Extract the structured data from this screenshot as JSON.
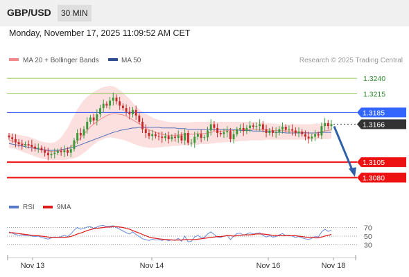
{
  "header": {
    "pair": "GBP/USD",
    "timeframe": "30 MIN"
  },
  "datetime": "Monday, November 17, 2025 11:09:52 AM CET",
  "legend": {
    "ma20": "MA 20 + Bollinger Bands",
    "ma50": "MA 50",
    "rsi": "RSI",
    "rsi_ma": "9MA"
  },
  "credit": "Research © 2025 Trading Central",
  "colors": {
    "ma20": "#f08a8a",
    "band": "#fbdada",
    "ma50": "#5470b8",
    "up": "#3a9a3a",
    "down": "#c52a2a",
    "resistance": "#8cc84a",
    "pivot_line": "#3355ee",
    "pivot_label": "#3366ff",
    "support": "#ee1111",
    "current": "#333333",
    "arrow": "#2e5fa8",
    "rsi": "#6a8adb",
    "rsi_ma": "#dd1a1a"
  },
  "chart_data": {
    "type": "candlestick",
    "x_tick_labels": [
      "Nov 13",
      "Nov 14",
      "Nov 16",
      "Nov 18"
    ],
    "price_range": [
      1.3056,
      1.3258
    ],
    "levels": [
      {
        "label": "1.3240",
        "value": 1.324,
        "kind": "resistance"
      },
      {
        "label": "1.3215",
        "value": 1.3215,
        "kind": "resistance"
      },
      {
        "label": "1.3185",
        "value": 1.3185,
        "kind": "pivot"
      },
      {
        "label": "1.3105",
        "value": 1.3105,
        "kind": "support"
      },
      {
        "label": "1.3080",
        "value": 1.308,
        "kind": "support"
      }
    ],
    "current_price": {
      "label": "1.3166",
      "value": 1.3166
    },
    "forecast_arrow": {
      "from": 1.3166,
      "to": 1.308
    },
    "close": [
      1.3145,
      1.3142,
      1.3137,
      1.3134,
      1.3132,
      1.3134,
      1.3133,
      1.313,
      1.3127,
      1.3128,
      1.3124,
      1.312,
      1.3116,
      1.3118,
      1.312,
      1.3123,
      1.3121,
      1.3124,
      1.312,
      1.3126,
      1.314,
      1.3152,
      1.3148,
      1.3158,
      1.317,
      1.3177,
      1.3172,
      1.3182,
      1.3192,
      1.3199,
      1.3196,
      1.3204,
      1.3209,
      1.3203,
      1.3196,
      1.3192,
      1.3186,
      1.3182,
      1.3189,
      1.318,
      1.317,
      1.3158,
      1.3152,
      1.3147,
      1.315,
      1.3147,
      1.3146,
      1.3144,
      1.3147,
      1.3142,
      1.3146,
      1.3144,
      1.3148,
      1.314,
      1.3152,
      1.3136,
      1.3136,
      1.3146,
      1.315,
      1.3144,
      1.3145,
      1.3156,
      1.3166,
      1.316,
      1.3152,
      1.315,
      1.3153,
      1.3155,
      1.3142,
      1.315,
      1.3158,
      1.316,
      1.3155,
      1.316,
      1.3164,
      1.3162,
      1.3163,
      1.3166,
      1.3158,
      1.3152,
      1.3156,
      1.3152,
      1.3153,
      1.3158,
      1.3162,
      1.3157,
      1.3158,
      1.3156,
      1.3152,
      1.3154,
      1.315,
      1.3146,
      1.3143,
      1.3146,
      1.315,
      1.3148,
      1.3163,
      1.3168,
      1.3163,
      1.3166
    ],
    "ma20": [
      1.314,
      1.3139,
      1.3138,
      1.3136,
      1.3135,
      1.3133,
      1.3132,
      1.313,
      1.3128,
      1.3127,
      1.3125,
      1.3124,
      1.3123,
      1.3122,
      1.3122,
      1.3123,
      1.3124,
      1.3125,
      1.3127,
      1.313,
      1.3134,
      1.3139,
      1.3144,
      1.315,
      1.3156,
      1.3162,
      1.3166,
      1.317,
      1.3174,
      1.3177,
      1.318,
      1.3182,
      1.3183,
      1.3183,
      1.3182,
      1.3181,
      1.3179,
      1.3176,
      1.3173,
      1.317,
      1.3167,
      1.3163,
      1.316,
      1.3157,
      1.3155,
      1.3153,
      1.3151,
      1.315,
      1.3149,
      1.3148,
      1.3148,
      1.3148,
      1.3149,
      1.3149,
      1.315,
      1.315,
      1.315,
      1.315,
      1.3151,
      1.3151,
      1.3151,
      1.3152,
      1.3153,
      1.3154,
      1.3154,
      1.3155,
      1.3155,
      1.3156,
      1.3156,
      1.3156,
      1.3157,
      1.3157,
      1.3157,
      1.3158,
      1.3158,
      1.3158,
      1.3158,
      1.3158,
      1.3157,
      1.3157,
      1.3157,
      1.3156,
      1.3156,
      1.3156,
      1.3156,
      1.3155,
      1.3155,
      1.3155,
      1.3154,
      1.3154,
      1.3153,
      1.3153,
      1.3152,
      1.3152,
      1.3152,
      1.3153,
      1.3154,
      1.3155,
      1.3156,
      1.3157
    ],
    "ma50": [
      1.3135,
      1.3134,
      1.3133,
      1.3132,
      1.3131,
      1.313,
      1.3129,
      1.3128,
      1.3127,
      1.3126,
      1.3125,
      1.3125,
      1.3124,
      1.3124,
      1.3124,
      1.3124,
      1.3125,
      1.3126,
      1.3127,
      1.3128,
      1.3129,
      1.3131,
      1.3133,
      1.3135,
      1.3137,
      1.3139,
      1.3141,
      1.3143,
      1.3145,
      1.3147,
      1.3149,
      1.3151,
      1.3153,
      1.3154,
      1.3156,
      1.3157,
      1.3158,
      1.3159,
      1.316,
      1.316,
      1.3161,
      1.3161,
      1.3161,
      1.3161,
      1.3161,
      1.3161,
      1.3161,
      1.316,
      1.316,
      1.316,
      1.316,
      1.316,
      1.3159,
      1.3159,
      1.3159,
      1.3158,
      1.3158,
      1.3158,
      1.3158,
      1.3158,
      1.3158,
      1.3158,
      1.3158,
      1.3158,
      1.3158,
      1.3157,
      1.3157,
      1.3157,
      1.3157,
      1.3157,
      1.3157,
      1.3156,
      1.3156,
      1.3156,
      1.3156,
      1.3155,
      1.3155,
      1.3155,
      1.3155,
      1.3154,
      1.3154,
      1.3154,
      1.3153,
      1.3153,
      1.3153,
      1.3152,
      1.3152,
      1.3152,
      1.3152,
      1.3152,
      1.3152,
      1.3152,
      1.3152,
      1.3152,
      1.3152,
      1.3152,
      1.3153,
      1.3153,
      1.3153,
      1.3153
    ],
    "bb_upper": [
      1.3152,
      1.3151,
      1.315,
      1.3149,
      1.3148,
      1.3147,
      1.3146,
      1.3144,
      1.3142,
      1.314,
      1.3138,
      1.3137,
      1.3136,
      1.3136,
      1.3137,
      1.314,
      1.3145,
      1.3152,
      1.316,
      1.317,
      1.318,
      1.319,
      1.3198,
      1.3205,
      1.321,
      1.3214,
      1.3218,
      1.3221,
      1.3224,
      1.3226,
      1.3227,
      1.3228,
      1.3227,
      1.3225,
      1.3221,
      1.3217,
      1.3212,
      1.3207,
      1.3201,
      1.3195,
      1.319,
      1.3186,
      1.3183,
      1.318,
      1.3177,
      1.3175,
      1.3173,
      1.3172,
      1.3171,
      1.317,
      1.3169,
      1.3169,
      1.3169,
      1.3169,
      1.3169,
      1.3169,
      1.3169,
      1.317,
      1.317,
      1.317,
      1.317,
      1.317,
      1.317,
      1.317,
      1.317,
      1.317,
      1.317,
      1.317,
      1.317,
      1.317,
      1.317,
      1.317,
      1.317,
      1.317,
      1.317,
      1.317,
      1.317,
      1.3169,
      1.3169,
      1.3168,
      1.3168,
      1.3167,
      1.3167,
      1.3166,
      1.3166,
      1.3166,
      1.3166,
      1.3166,
      1.3166,
      1.3166,
      1.3166,
      1.3166,
      1.3166,
      1.3166,
      1.3167,
      1.3167,
      1.3167,
      1.3168,
      1.3168,
      1.3168
    ],
    "bb_lower": [
      1.3128,
      1.3127,
      1.3126,
      1.3124,
      1.3122,
      1.312,
      1.3118,
      1.3116,
      1.3114,
      1.3112,
      1.3111,
      1.311,
      1.3109,
      1.3108,
      1.3108,
      1.3108,
      1.3108,
      1.3108,
      1.3109,
      1.311,
      1.3111,
      1.3113,
      1.3116,
      1.312,
      1.3124,
      1.3129,
      1.3133,
      1.3137,
      1.314,
      1.3142,
      1.3144,
      1.3145,
      1.3144,
      1.3143,
      1.3142,
      1.3141,
      1.3139,
      1.3137,
      1.3135,
      1.3133,
      1.3131,
      1.313,
      1.3129,
      1.3128,
      1.3128,
      1.3128,
      1.3129,
      1.3129,
      1.313,
      1.313,
      1.3131,
      1.3131,
      1.3131,
      1.3132,
      1.3132,
      1.3132,
      1.3133,
      1.3133,
      1.3133,
      1.3134,
      1.3134,
      1.3134,
      1.3135,
      1.3135,
      1.3136,
      1.3136,
      1.3137,
      1.3137,
      1.3138,
      1.3138,
      1.3138,
      1.3139,
      1.3139,
      1.3139,
      1.314,
      1.314,
      1.314,
      1.314,
      1.314,
      1.3141,
      1.3141,
      1.3141,
      1.3141,
      1.3141,
      1.3141,
      1.3141,
      1.3141,
      1.3141,
      1.3141,
      1.3141,
      1.3141,
      1.3141,
      1.3141,
      1.3141,
      1.3141,
      1.3142,
      1.3142,
      1.3142,
      1.3142,
      1.3143
    ],
    "rsi_range": [
      10,
      90
    ],
    "rsi_ticks": [
      {
        "label": "70",
        "value": 70
      },
      {
        "label": "50",
        "value": 50
      },
      {
        "label": "30",
        "value": 30
      }
    ],
    "rsi": [
      60,
      57,
      54,
      52,
      53,
      51,
      52,
      50,
      49,
      50,
      47,
      45,
      43,
      46,
      48,
      47,
      49,
      52,
      49,
      55,
      64,
      70,
      66,
      68,
      71,
      72,
      68,
      71,
      74,
      75,
      72,
      73,
      74,
      70,
      66,
      62,
      58,
      55,
      60,
      54,
      49,
      44,
      42,
      40,
      43,
      41,
      42,
      40,
      43,
      39,
      42,
      40,
      45,
      38,
      50,
      37,
      38,
      48,
      52,
      46,
      47,
      55,
      60,
      54,
      48,
      47,
      50,
      52,
      42,
      50,
      56,
      57,
      52,
      55,
      58,
      55,
      56,
      58,
      52,
      48,
      51,
      48,
      49,
      53,
      56,
      51,
      52,
      50,
      47,
      49,
      46,
      44,
      42,
      45,
      49,
      48,
      60,
      66,
      61,
      64
    ],
    "rsi_ma": [
      58,
      58,
      57,
      56,
      55,
      54,
      53,
      52,
      51,
      51,
      50,
      49,
      48,
      47,
      47,
      47,
      47,
      47,
      48,
      49,
      52,
      55,
      57,
      60,
      63,
      65,
      67,
      68,
      69,
      70,
      71,
      71,
      72,
      72,
      71,
      70,
      68,
      66,
      63,
      60,
      57,
      54,
      51,
      48,
      46,
      45,
      44,
      43,
      42,
      42,
      41,
      41,
      41,
      41,
      42,
      42,
      42,
      42,
      43,
      44,
      45,
      46,
      47,
      48,
      49,
      49,
      50,
      51,
      51,
      50,
      51,
      52,
      53,
      53,
      53,
      54,
      55,
      55,
      55,
      54,
      53,
      52,
      51,
      51,
      51,
      51,
      51,
      51,
      51,
      50,
      49,
      48,
      47,
      47,
      46,
      46,
      48,
      50,
      52,
      54
    ]
  }
}
